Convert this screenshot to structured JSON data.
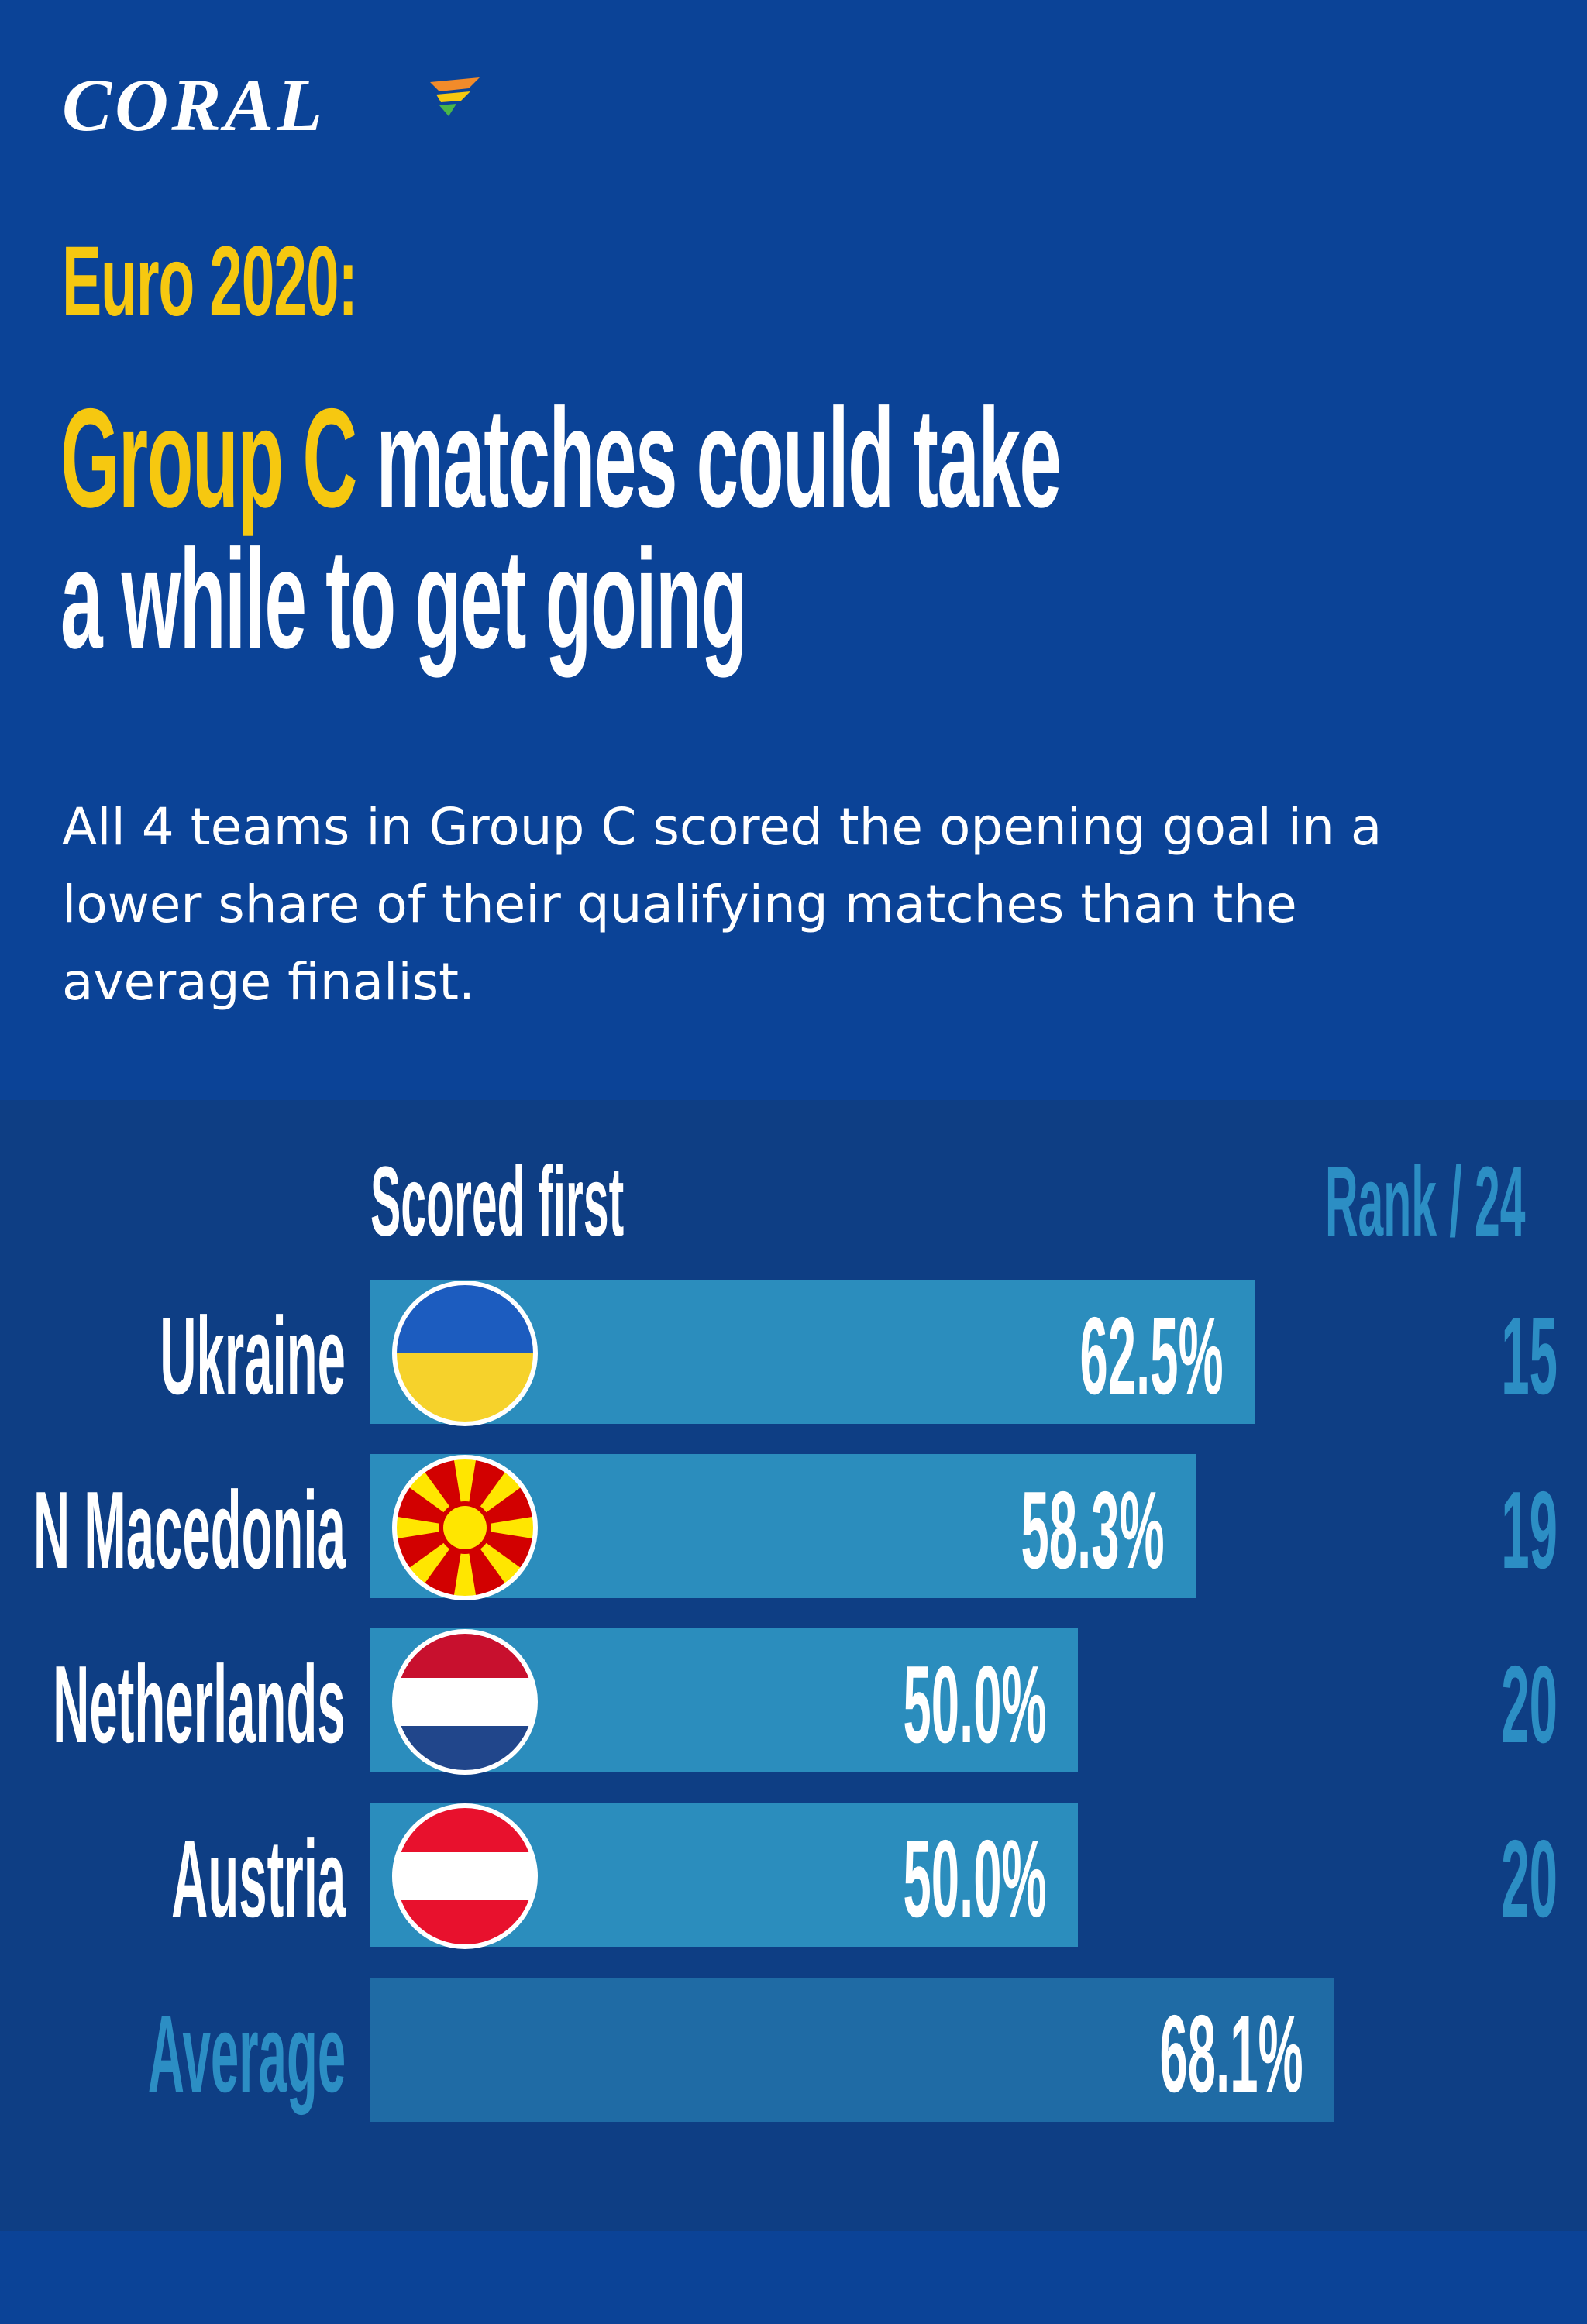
{
  "brand": {
    "logo_text": "CORAL"
  },
  "header": {
    "title_line1": "Euro 2020:",
    "title_highlight": "Group C",
    "title_rest_line2": " matches could take",
    "title_line3": "a while to get going",
    "subtitle": "All 4 teams in Group C scored the opening goal in a lower share of their qualifying matches than the average finalist."
  },
  "colors": {
    "background": "#0b4397",
    "panel": "#0e3e84",
    "bar": "#2b8dbd",
    "average_bar": "#1f6ba5",
    "highlight": "#f6c810",
    "rank_text": "#2c8ec4"
  },
  "chart_data": {
    "type": "bar",
    "orientation": "horizontal",
    "value_header": "Scored first",
    "rank_header": "Rank / 24",
    "categories": [
      "Ukraine",
      "N Macedonia",
      "Netherlands",
      "Austria",
      "Average"
    ],
    "values": [
      62.5,
      58.3,
      50.0,
      50.0,
      68.1
    ],
    "value_labels": [
      "62.5%",
      "58.3%",
      "50.0%",
      "50.0%",
      "68.1%"
    ],
    "ranks": [
      "15",
      "19",
      "20",
      "20",
      ""
    ],
    "flags": [
      "ukraine-flag",
      "north-macedonia-flag",
      "netherlands-flag",
      "austria-flag",
      ""
    ],
    "xlim": [
      0,
      100
    ],
    "grid": false
  }
}
